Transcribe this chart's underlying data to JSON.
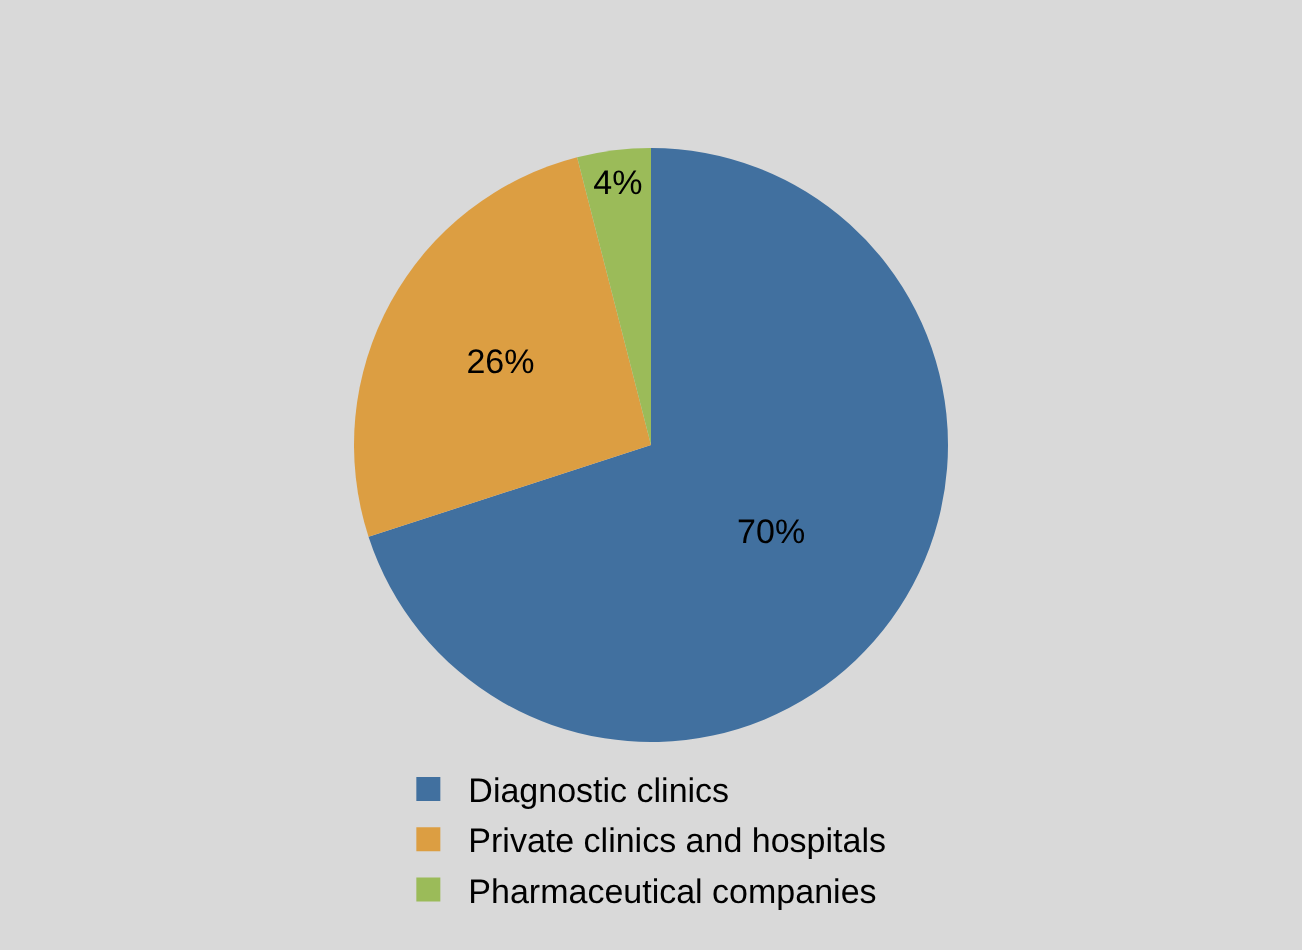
{
  "chart_data": {
    "type": "pie",
    "categories": [
      "Diagnostic clinics",
      "Private clinics and hospitals",
      "Pharmaceutical companies"
    ],
    "values": [
      70,
      26,
      4
    ],
    "colors": [
      "#41709f",
      "#dc9e42",
      "#9bbb59"
    ],
    "value_labels": [
      "70%",
      "26%",
      "4%"
    ],
    "legend": "bottom"
  }
}
